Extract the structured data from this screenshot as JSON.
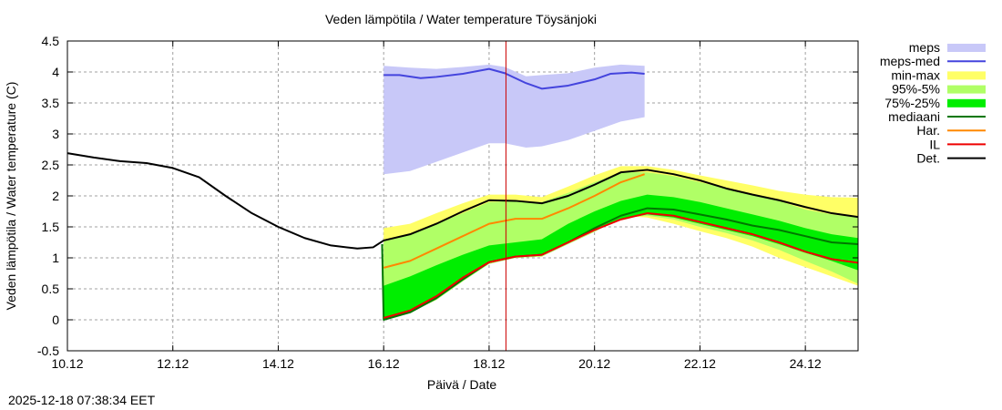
{
  "chart_data": {
    "type": "area",
    "title": "Veden lämpötila / Water temperature Töysänjoki",
    "xlabel": "Päivä / Date",
    "ylabel": "Veden lämpötila / Water temperature (C)",
    "x_unit": "days since 10.12",
    "xlim": [
      0,
      15
    ],
    "ylim": [
      -0.5,
      4.5
    ],
    "x_ticks": [
      {
        "value": 0,
        "label": "10.12"
      },
      {
        "value": 2,
        "label": "12.12"
      },
      {
        "value": 4,
        "label": "14.12"
      },
      {
        "value": 6,
        "label": "16.12"
      },
      {
        "value": 8,
        "label": "18.12"
      },
      {
        "value": 10,
        "label": "20.12"
      },
      {
        "value": 12,
        "label": "22.12"
      },
      {
        "value": 14,
        "label": "24.12"
      }
    ],
    "y_ticks": [
      {
        "value": -0.5,
        "label": "-0.5"
      },
      {
        "value": 0,
        "label": "0"
      },
      {
        "value": 0.5,
        "label": "0.5"
      },
      {
        "value": 1,
        "label": "1"
      },
      {
        "value": 1.5,
        "label": "1.5"
      },
      {
        "value": 2,
        "label": "2"
      },
      {
        "value": 2.5,
        "label": "2.5"
      },
      {
        "value": 3,
        "label": "3"
      },
      {
        "value": 3.5,
        "label": "3.5"
      },
      {
        "value": 4,
        "label": "4"
      },
      {
        "value": 4.5,
        "label": "4.5"
      }
    ],
    "grid": true,
    "legend_position": "right",
    "current_time_marker": {
      "x": 8.32,
      "color": "#cc0000"
    },
    "legend": [
      {
        "key": "meps",
        "label": "meps",
        "kind": "band",
        "color": "#c8c8f8"
      },
      {
        "key": "meps_med",
        "label": "meps-med",
        "kind": "line",
        "color": "#4444dd"
      },
      {
        "key": "minmax",
        "label": "min-max",
        "kind": "band",
        "color": "#ffff66"
      },
      {
        "key": "p95_5",
        "label": "95%-5%",
        "kind": "band",
        "color": "#b0ff66"
      },
      {
        "key": "p75_25",
        "label": "75%-25%",
        "kind": "band",
        "color": "#00ee00"
      },
      {
        "key": "median",
        "label": "mediaani",
        "kind": "line",
        "color": "#007700"
      },
      {
        "key": "har",
        "label": "Har.",
        "kind": "line",
        "color": "#ff8800"
      },
      {
        "key": "il",
        "label": "IL",
        "kind": "line",
        "color": "#ee0000"
      },
      {
        "key": "det",
        "label": "Det.",
        "kind": "line",
        "color": "#000000"
      }
    ],
    "bands": {
      "meps": {
        "x": [
          6.0,
          6.5,
          7.0,
          7.5,
          8.0,
          8.3,
          8.7,
          9.0,
          9.5,
          10.0,
          10.5,
          10.95
        ],
        "upper": [
          4.1,
          4.07,
          4.05,
          4.08,
          4.12,
          4.08,
          3.93,
          3.95,
          3.98,
          4.07,
          4.12,
          4.1
        ],
        "lower": [
          2.35,
          2.4,
          2.55,
          2.7,
          2.85,
          2.85,
          2.78,
          2.8,
          2.9,
          3.05,
          3.2,
          3.27
        ]
      },
      "minmax": {
        "x": [
          6.0,
          6.5,
          7.0,
          7.5,
          8.0,
          8.5,
          9.0,
          9.5,
          10.0,
          10.5,
          11.0,
          11.5,
          12.0,
          12.5,
          13.0,
          13.5,
          14.0,
          14.5,
          15.0
        ],
        "upper": [
          1.48,
          1.55,
          1.72,
          1.88,
          2.02,
          2.02,
          1.98,
          2.15,
          2.33,
          2.48,
          2.48,
          2.42,
          2.33,
          2.25,
          2.17,
          2.08,
          2.02,
          1.98,
          1.97
        ],
        "lower": [
          0.0,
          0.15,
          0.38,
          0.68,
          0.93,
          1.0,
          1.02,
          1.25,
          1.45,
          1.68,
          1.65,
          1.55,
          1.43,
          1.32,
          1.18,
          1.0,
          0.85,
          0.7,
          0.55
        ]
      },
      "p95_5": {
        "x": [
          6.0,
          6.5,
          7.0,
          7.5,
          8.0,
          8.5,
          9.0,
          9.5,
          10.0,
          10.5,
          11.0,
          11.5,
          12.0,
          12.5,
          13.0,
          13.5,
          14.0,
          14.5,
          15.0
        ],
        "upper": [
          1.28,
          1.38,
          1.55,
          1.72,
          1.9,
          1.92,
          1.9,
          2.05,
          2.22,
          2.38,
          2.38,
          2.32,
          2.22,
          2.12,
          2.02,
          1.92,
          1.78,
          1.7,
          1.65
        ],
        "lower": [
          0.0,
          0.12,
          0.32,
          0.62,
          0.9,
          1.0,
          1.02,
          1.22,
          1.42,
          1.65,
          1.68,
          1.62,
          1.5,
          1.4,
          1.28,
          1.13,
          0.95,
          0.78,
          0.58
        ]
      },
      "p75_25": {
        "x": [
          6.0,
          6.5,
          7.0,
          7.5,
          8.0,
          8.5,
          9.0,
          9.5,
          10.0,
          10.5,
          11.0,
          11.5,
          12.0,
          12.5,
          13.0,
          13.5,
          14.0,
          14.5,
          15.0
        ],
        "upper": [
          0.55,
          0.7,
          0.88,
          1.05,
          1.2,
          1.25,
          1.3,
          1.55,
          1.75,
          1.92,
          2.02,
          1.98,
          1.9,
          1.8,
          1.7,
          1.6,
          1.48,
          1.38,
          1.32
        ],
        "lower": [
          0.0,
          0.12,
          0.35,
          0.65,
          0.92,
          1.02,
          1.05,
          1.25,
          1.45,
          1.62,
          1.7,
          1.65,
          1.55,
          1.45,
          1.35,
          1.22,
          1.08,
          0.95,
          0.8
        ]
      }
    },
    "series": [
      {
        "key": "meps_med",
        "name": "meps-med",
        "x": [
          6.0,
          6.3,
          6.7,
          7.0,
          7.5,
          8.0,
          8.3,
          8.7,
          9.0,
          9.5,
          10.0,
          10.3,
          10.7,
          10.95
        ],
        "y": [
          3.95,
          3.95,
          3.9,
          3.92,
          3.97,
          4.05,
          3.98,
          3.82,
          3.73,
          3.78,
          3.88,
          3.97,
          3.99,
          3.97
        ]
      },
      {
        "key": "median",
        "name": "mediaani",
        "x": [
          5.97,
          6.0,
          6.5,
          7.0,
          7.5,
          8.0,
          8.5,
          9.0,
          9.5,
          10.0,
          10.5,
          11.0,
          11.5,
          12.0,
          12.5,
          13.0,
          13.5,
          14.0,
          14.5,
          15.0
        ],
        "y": [
          1.22,
          0.0,
          0.12,
          0.35,
          0.65,
          0.93,
          1.02,
          1.05,
          1.25,
          1.48,
          1.68,
          1.8,
          1.78,
          1.7,
          1.62,
          1.52,
          1.45,
          1.35,
          1.25,
          1.22
        ]
      },
      {
        "key": "har",
        "name": "Har.",
        "x": [
          6.0,
          6.5,
          7.0,
          7.5,
          8.0,
          8.5,
          9.0,
          9.5,
          10.0,
          10.5,
          10.95
        ],
        "y": [
          0.84,
          0.95,
          1.15,
          1.35,
          1.55,
          1.63,
          1.63,
          1.8,
          2.0,
          2.22,
          2.35
        ]
      },
      {
        "key": "il",
        "name": "IL",
        "x": [
          6.0,
          6.5,
          7.0,
          7.5,
          8.0,
          8.5,
          9.0,
          9.5,
          10.0,
          10.5,
          11.0,
          11.5,
          12.0,
          12.5,
          13.0,
          13.5,
          14.0,
          14.5,
          15.0
        ],
        "y": [
          0.03,
          0.15,
          0.38,
          0.68,
          0.93,
          1.02,
          1.05,
          1.25,
          1.45,
          1.62,
          1.72,
          1.68,
          1.58,
          1.48,
          1.38,
          1.25,
          1.1,
          0.98,
          0.92
        ]
      },
      {
        "key": "det",
        "name": "Det.",
        "x": [
          0,
          0.5,
          1.0,
          1.5,
          2.0,
          2.5,
          3.0,
          3.5,
          4.0,
          4.5,
          5.0,
          5.5,
          5.8,
          6.0,
          6.5,
          7.0,
          7.5,
          8.0,
          8.5,
          9.0,
          9.5,
          10.0,
          10.5,
          11.0,
          11.5,
          12.0,
          12.5,
          13.0,
          13.5,
          14.0,
          14.5,
          15.0
        ],
        "y": [
          2.69,
          2.62,
          2.56,
          2.53,
          2.45,
          2.3,
          2.0,
          1.72,
          1.5,
          1.32,
          1.2,
          1.15,
          1.17,
          1.28,
          1.38,
          1.55,
          1.75,
          1.93,
          1.92,
          1.88,
          2.0,
          2.18,
          2.38,
          2.42,
          2.35,
          2.25,
          2.12,
          2.02,
          1.93,
          1.82,
          1.72,
          1.66
        ]
      }
    ]
  },
  "footer": {
    "timestamp": "2025-12-18 07:38:34 EET"
  }
}
